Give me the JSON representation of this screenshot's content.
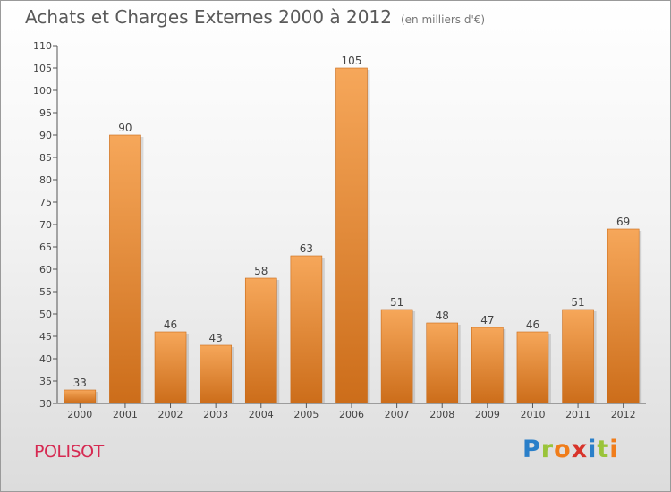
{
  "title": "Achats et Charges Externes 2000 à 2012",
  "subtitle": "(en milliers d'€)",
  "commune": "POLISOT",
  "logo": {
    "letters": [
      "P",
      "r",
      "o",
      "x",
      "i",
      "t",
      "i"
    ],
    "colors": [
      "#2a7fc9",
      "#9ac43a",
      "#f07d1b",
      "#d8342b",
      "#2a7fc9",
      "#9ac43a",
      "#f07d1b"
    ]
  },
  "colors": {
    "bar_light": "#f6a75a",
    "bar_dark": "#cc6d1a",
    "title": "#5a5a5a",
    "commune": "#d62a52"
  },
  "chart_data": {
    "type": "bar",
    "title": "Achats et Charges Externes 2000 à 2012",
    "subtitle": "(en milliers d'€)",
    "categories": [
      "2000",
      "2001",
      "2002",
      "2003",
      "2004",
      "2005",
      "2006",
      "2007",
      "2008",
      "2009",
      "2010",
      "2011",
      "2012"
    ],
    "values": [
      33,
      90,
      46,
      43,
      58,
      63,
      105,
      51,
      48,
      47,
      46,
      51,
      69
    ],
    "ylim": [
      30,
      110
    ],
    "yticks": [
      30,
      35,
      40,
      45,
      50,
      55,
      60,
      65,
      70,
      75,
      80,
      85,
      90,
      95,
      100,
      105,
      110
    ],
    "grid": false,
    "legend": "none"
  }
}
